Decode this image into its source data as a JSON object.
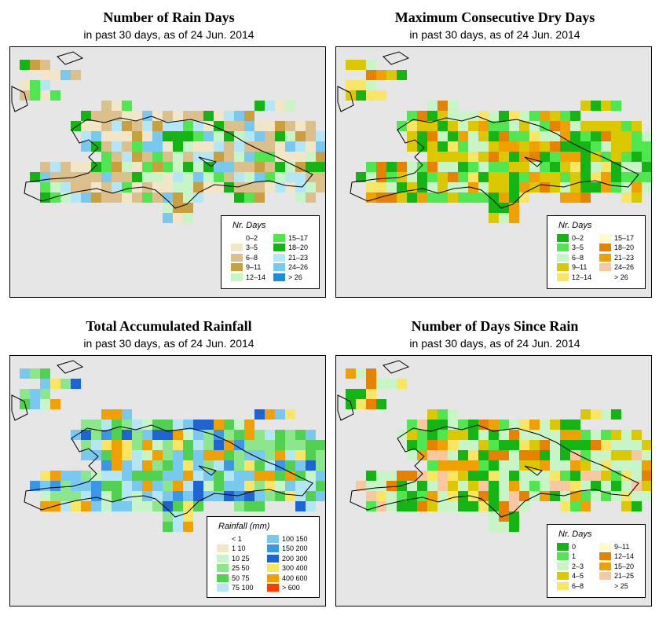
{
  "panels": [
    {
      "id": "rain-days",
      "title": "Number of Rain Days",
      "subtitle": "in past 30 days, as of  24 Jun. 2014",
      "legend": {
        "title": "Nr. Days",
        "columns": [
          [
            {
              "label": "0–2",
              "color": "#ffffff"
            },
            {
              "label": "3–5",
              "color": "#f2e6c8"
            },
            {
              "label": "6–8",
              "color": "#dcc08c"
            },
            {
              "label": "9–11",
              "color": "#c8a040"
            },
            {
              "label": "12–14",
              "color": "#c8f5c8"
            }
          ],
          [
            {
              "label": "15–17",
              "color": "#50e650"
            },
            {
              "label": "18–20",
              "color": "#14b414"
            },
            {
              "label": "21–23",
              "color": "#b4e6f5"
            },
            {
              "label": "24–26",
              "color": "#78c8f0"
            },
            {
              "label": "> 26",
              "color": "#1e8cd2"
            }
          ]
        ]
      }
    },
    {
      "id": "dry-days",
      "title": "Maximum Consecutive Dry Days",
      "subtitle": "in past 30 days, as of  24 Jun. 2014",
      "legend": {
        "title": "Nr. Days",
        "columns": [
          [
            {
              "label": "0–2",
              "color": "#14b414"
            },
            {
              "label": "3–5",
              "color": "#50e650"
            },
            {
              "label": "6–8",
              "color": "#c8f5c8"
            },
            {
              "label": "9–11",
              "color": "#dcc800"
            },
            {
              "label": "12–14",
              "color": "#fae664"
            }
          ],
          [
            {
              "label": "15–17",
              "color": "#fffac8"
            },
            {
              "label": "18–20",
              "color": "#e68200"
            },
            {
              "label": "21–23",
              "color": "#f0a000"
            },
            {
              "label": "24–26",
              "color": "#fac8a0"
            },
            {
              "label": "> 26",
              "color": "#ffffff"
            }
          ]
        ]
      }
    },
    {
      "id": "rainfall",
      "title": "Total Accumulated Rainfall",
      "subtitle": "in past 30 days, as of  24 Jun. 2014",
      "legend": {
        "title": "Rainfall (mm)",
        "columns": [
          [
            {
              "label": "< 1",
              "color": "#ffffff"
            },
            {
              "label": "1    10",
              "color": "#f2e6c8"
            },
            {
              "label": "10    25",
              "color": "#c8f5c8"
            },
            {
              "label": "25    50",
              "color": "#8ce68c"
            },
            {
              "label": "50    75",
              "color": "#50d250"
            },
            {
              "label": "75    100",
              "color": "#b4e6f5"
            }
          ],
          [
            {
              "label": "100    150",
              "color": "#78c8f0"
            },
            {
              "label": "150    200",
              "color": "#3c96e6"
            },
            {
              "label": "200    300",
              "color": "#1e64d2"
            },
            {
              "label": "300    400",
              "color": "#fae664"
            },
            {
              "label": "400    600",
              "color": "#f0a000"
            },
            {
              "label": "> 600",
              "color": "#ff3c00"
            }
          ]
        ]
      }
    },
    {
      "id": "days-since-rain",
      "title": "Number of Days Since Rain",
      "subtitle": "in past 30 days, as of  24 Jun. 2014",
      "legend": {
        "title": "Nr. Days",
        "columns": [
          [
            {
              "label": "0",
              "color": "#14b414"
            },
            {
              "label": "1",
              "color": "#50e650"
            },
            {
              "label": "2–3",
              "color": "#c8f5c8"
            },
            {
              "label": "4–5",
              "color": "#dcc800"
            },
            {
              "label": "6–8",
              "color": "#fae664"
            }
          ],
          [
            {
              "label": "9–11",
              "color": "#fffac8"
            },
            {
              "label": "12–14",
              "color": "#e68200"
            },
            {
              "label": "15–20",
              "color": "#f0a000"
            },
            {
              "label": "21–25",
              "color": "#fac8a0"
            },
            {
              "label": "> 25",
              "color": "#ffffff"
            }
          ]
        ]
      }
    }
  ]
}
